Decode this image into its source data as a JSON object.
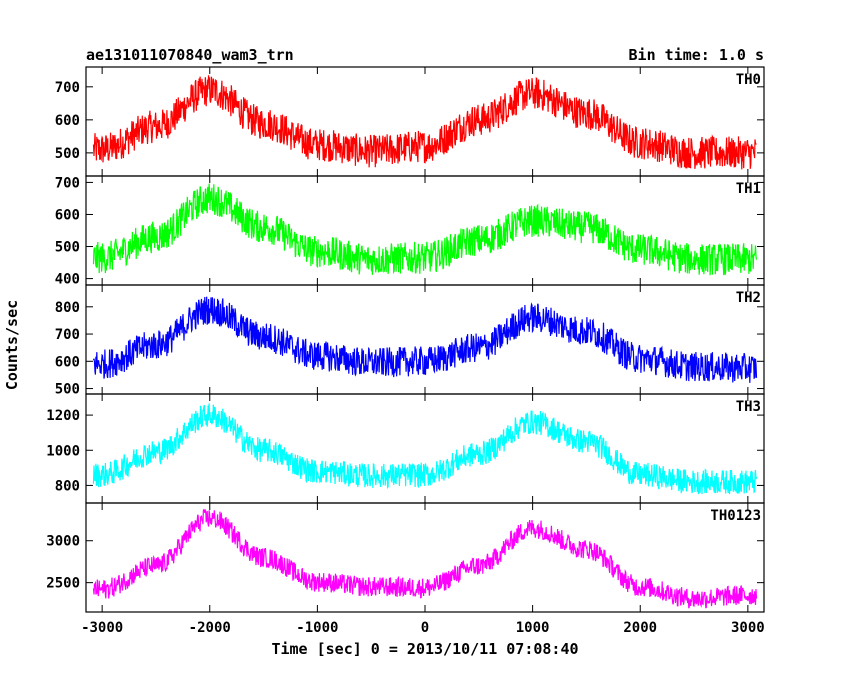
{
  "chart_data": {
    "type": "line",
    "title": "ae131011070840_wam3_trn",
    "bin_time": "Bin time: 1.0 s",
    "xlabel": "Time [sec] 0 = 2013/10/11 07:08:40",
    "ylabel": "Counts/sec",
    "xlim": [
      -3150,
      3150
    ],
    "x_ticks": [
      -3000,
      -2000,
      -1000,
      0,
      1000,
      2000,
      3000
    ],
    "x_range": [
      -3080,
      3080
    ],
    "grid": false,
    "panels": [
      {
        "name": "TH0",
        "color": "#ff0000",
        "ylim": [
          430,
          760
        ],
        "y_ticks": [
          500,
          600,
          700
        ],
        "x": [
          -3000,
          -2500,
          -2000,
          -1500,
          -1000,
          -500,
          0,
          500,
          1000,
          1500,
          2000,
          2500,
          3000
        ],
        "mean": [
          510,
          580,
          690,
          590,
          525,
          505,
          520,
          600,
          680,
          620,
          530,
          500,
          500
        ],
        "noise": 50
      },
      {
        "name": "TH1",
        "color": "#00ff00",
        "ylim": [
          380,
          720
        ],
        "y_ticks": [
          400,
          500,
          600,
          700
        ],
        "x": [
          -3000,
          -2500,
          -2000,
          -1500,
          -1000,
          -500,
          0,
          500,
          1000,
          1500,
          2000,
          2500,
          3000
        ],
        "mean": [
          465,
          530,
          650,
          560,
          485,
          460,
          465,
          520,
          580,
          560,
          490,
          460,
          460
        ],
        "noise": 50
      },
      {
        "name": "TH2",
        "color": "#0000ff",
        "ylim": [
          480,
          880
        ],
        "y_ticks": [
          500,
          600,
          700,
          800
        ],
        "x": [
          -3000,
          -2500,
          -2000,
          -1500,
          -1000,
          -500,
          0,
          500,
          1000,
          1500,
          2000,
          2500,
          3000
        ],
        "mean": [
          590,
          660,
          790,
          690,
          620,
          595,
          600,
          650,
          760,
          710,
          610,
          580,
          575
        ],
        "noise": 55
      },
      {
        "name": "TH3",
        "color": "#00ffff",
        "ylim": [
          700,
          1320
        ],
        "y_ticks": [
          800,
          1000,
          1200
        ],
        "x": [
          -3000,
          -2500,
          -2000,
          -1500,
          -1000,
          -500,
          0,
          500,
          1000,
          1500,
          2000,
          2500,
          3000
        ],
        "mean": [
          860,
          990,
          1200,
          1000,
          880,
          855,
          860,
          980,
          1160,
          1050,
          860,
          820,
          820
        ],
        "noise": 70
      },
      {
        "name": "TH0123",
        "color": "#ff00ff",
        "ylim": [
          2150,
          3450
        ],
        "y_ticks": [
          2500,
          3000
        ],
        "x": [
          -3000,
          -2500,
          -2000,
          -1500,
          -1000,
          -500,
          0,
          500,
          1000,
          1500,
          2000,
          2500,
          3000
        ],
        "mean": [
          2420,
          2700,
          3270,
          2800,
          2510,
          2450,
          2440,
          2700,
          3150,
          2900,
          2450,
          2310,
          2350
        ],
        "noise": 120
      }
    ]
  }
}
